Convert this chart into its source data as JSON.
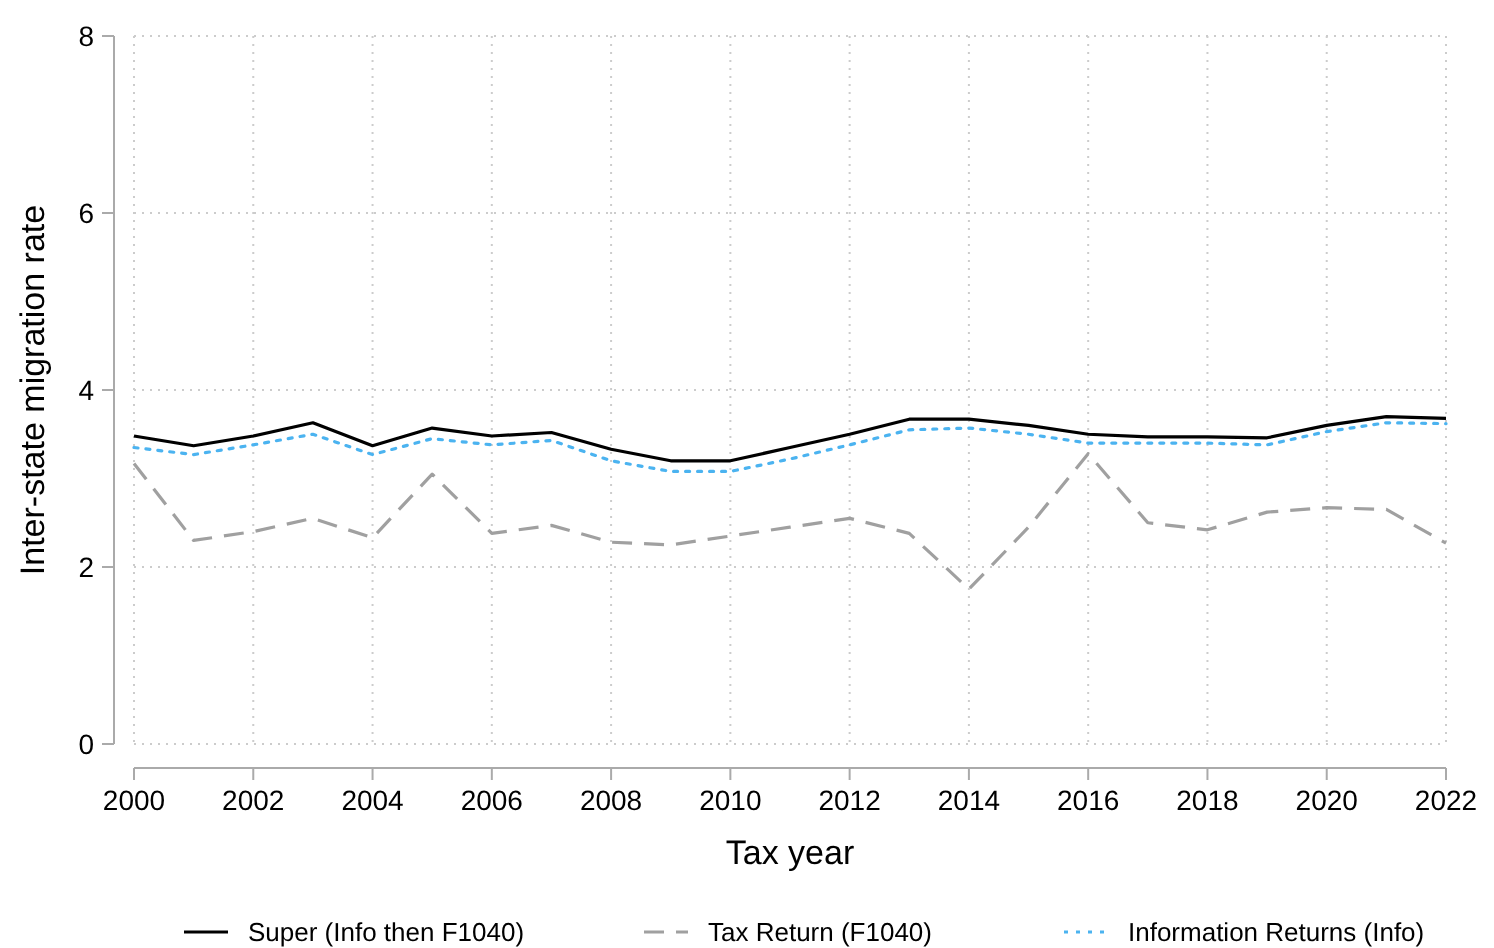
{
  "chart_data": {
    "type": "line",
    "xlabel": "Tax year",
    "ylabel": "Inter-state migration rate",
    "x": [
      2000,
      2001,
      2002,
      2003,
      2004,
      2005,
      2006,
      2007,
      2008,
      2009,
      2010,
      2011,
      2012,
      2013,
      2014,
      2015,
      2016,
      2017,
      2018,
      2019,
      2020,
      2021,
      2022
    ],
    "series": [
      {
        "name": "Super (Info then F1040)",
        "color": "#000000",
        "line_style": "solid",
        "values": [
          3.48,
          3.37,
          3.48,
          3.63,
          3.37,
          3.57,
          3.48,
          3.52,
          3.33,
          3.2,
          3.2,
          3.35,
          3.5,
          3.67,
          3.67,
          3.6,
          3.5,
          3.47,
          3.47,
          3.46,
          3.6,
          3.7,
          3.68
        ]
      },
      {
        "name": "Tax Return (F1040)",
        "color": "#a0a0a0",
        "line_style": "dashed",
        "values": [
          3.17,
          2.3,
          2.4,
          2.55,
          2.33,
          3.05,
          2.38,
          2.47,
          2.28,
          2.25,
          2.35,
          2.45,
          2.55,
          2.38,
          1.75,
          2.45,
          3.28,
          2.5,
          2.42,
          2.62,
          2.67,
          2.65,
          2.27
        ]
      },
      {
        "name": "Information Returns (Info)",
        "color": "#4bb3f0",
        "line_style": "dotted",
        "values": [
          3.35,
          3.27,
          3.38,
          3.5,
          3.27,
          3.45,
          3.38,
          3.43,
          3.2,
          3.08,
          3.08,
          3.22,
          3.38,
          3.55,
          3.57,
          3.5,
          3.4,
          3.4,
          3.4,
          3.38,
          3.53,
          3.63,
          3.62
        ]
      }
    ],
    "xlim": [
      2000,
      2022
    ],
    "xticks": [
      2000,
      2002,
      2004,
      2006,
      2008,
      2010,
      2012,
      2014,
      2016,
      2018,
      2020,
      2022
    ],
    "ylim": [
      0,
      8
    ],
    "yticks": [
      0,
      2,
      4,
      6,
      8
    ],
    "grid": true,
    "legend": "bottom",
    "marker": "none"
  }
}
